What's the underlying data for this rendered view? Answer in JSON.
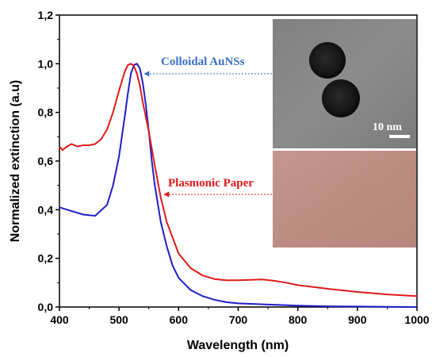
{
  "chart_data": {
    "type": "line",
    "xlabel": "Wavelength (nm)",
    "ylabel": "Normalized extinction (a.u)",
    "xlim": [
      400,
      1000
    ],
    "ylim": [
      0,
      1.2
    ],
    "x_ticks": [
      "400",
      "500",
      "600",
      "700",
      "800",
      "900",
      "1000"
    ],
    "y_ticks": [
      "0,0",
      "0,2",
      "0,4",
      "0,6",
      "0,8",
      "1,0",
      "1,2"
    ],
    "grid": false,
    "series": [
      {
        "name": "Colloidal AuNSs",
        "color": "#1f1fc8",
        "x": [
          400,
          420,
          440,
          460,
          480,
          490,
          500,
          510,
          515,
          520,
          525,
          530,
          535,
          540,
          545,
          550,
          555,
          560,
          570,
          580,
          590,
          600,
          620,
          640,
          660,
          680,
          700,
          750,
          800,
          850,
          900,
          950,
          1000
        ],
        "y": [
          0.41,
          0.395,
          0.38,
          0.375,
          0.42,
          0.5,
          0.62,
          0.79,
          0.88,
          0.96,
          0.995,
          1.0,
          0.98,
          0.92,
          0.83,
          0.72,
          0.6,
          0.5,
          0.35,
          0.25,
          0.17,
          0.12,
          0.07,
          0.045,
          0.03,
          0.02,
          0.015,
          0.01,
          0.006,
          0.003,
          0.002,
          0.001,
          0.0
        ]
      },
      {
        "name": "Plasmonic Paper",
        "color": "#e01a1a",
        "x": [
          400,
          405,
          410,
          420,
          430,
          440,
          450,
          460,
          470,
          480,
          490,
          500,
          510,
          515,
          520,
          525,
          530,
          535,
          540,
          550,
          560,
          570,
          580,
          600,
          620,
          640,
          660,
          680,
          700,
          720,
          740,
          760,
          780,
          800,
          850,
          900,
          950,
          1000
        ],
        "y": [
          0.66,
          0.645,
          0.655,
          0.67,
          0.66,
          0.665,
          0.665,
          0.67,
          0.69,
          0.73,
          0.8,
          0.89,
          0.97,
          0.995,
          1.0,
          0.99,
          0.96,
          0.91,
          0.84,
          0.72,
          0.58,
          0.45,
          0.35,
          0.22,
          0.16,
          0.13,
          0.115,
          0.11,
          0.11,
          0.112,
          0.113,
          0.108,
          0.1,
          0.09,
          0.075,
          0.062,
          0.052,
          0.045
        ]
      }
    ],
    "annotations": [
      {
        "text": "Colloidal AuNSs",
        "color": "#3a6fc4",
        "points_to": "blue peak"
      },
      {
        "text": "Plasmonic Paper",
        "color": "#e01a1a",
        "points_to": "red curve"
      }
    ],
    "inset_images": [
      {
        "name": "tem-image",
        "scale_bar_label": "10 nm"
      },
      {
        "name": "paper-photo"
      }
    ]
  }
}
